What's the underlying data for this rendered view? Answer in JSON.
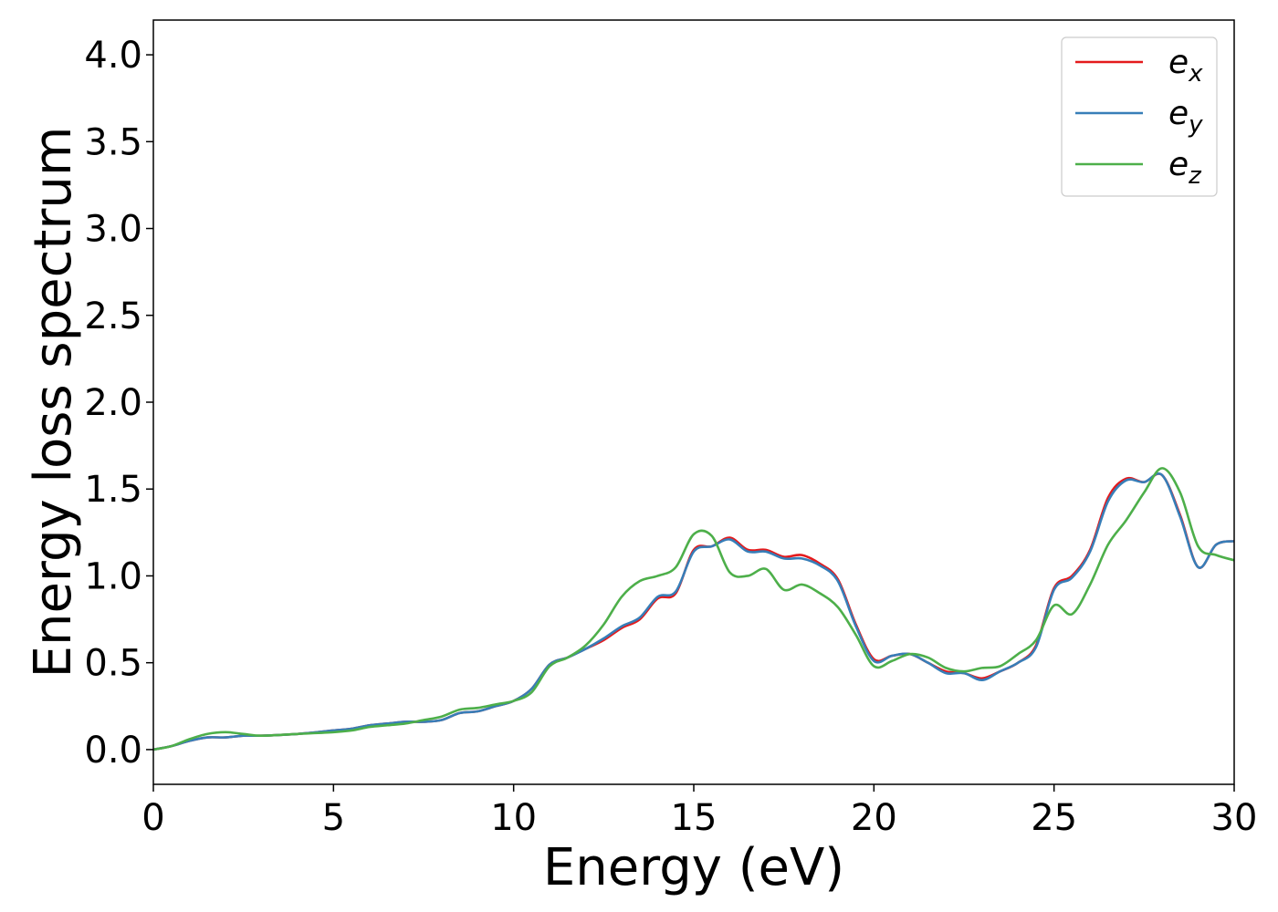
{
  "chart_data": {
    "type": "line",
    "xlabel": "Energy (eV)",
    "ylabel": "Energy loss spectrum",
    "xlim": [
      0,
      30
    ],
    "ylim": [
      -0.2,
      4.2
    ],
    "xticks": [
      0,
      5,
      10,
      15,
      20,
      25,
      30
    ],
    "xtick_labels": [
      "0",
      "5",
      "10",
      "15",
      "20",
      "25",
      "30"
    ],
    "yticks": [
      0.0,
      0.5,
      1.0,
      1.5,
      2.0,
      2.5,
      3.0,
      3.5,
      4.0
    ],
    "ytick_labels": [
      "0.0",
      "0.5",
      "1.0",
      "1.5",
      "2.0",
      "2.5",
      "3.0",
      "3.5",
      "4.0"
    ],
    "grid": false,
    "legend_position": "top-right",
    "series": [
      {
        "name": "e",
        "subscript": "x",
        "color": "#e41a1c",
        "x": [
          0,
          0.5,
          1,
          1.5,
          2,
          2.5,
          3,
          4,
          5,
          5.5,
          6,
          6.5,
          7,
          7.5,
          8,
          8.5,
          9,
          9.5,
          10,
          10.5,
          11,
          11.5,
          12,
          12.5,
          13,
          13.5,
          14,
          14.5,
          15,
          15.5,
          16,
          16.5,
          17,
          17.5,
          18,
          18.5,
          19,
          19.5,
          20,
          20.5,
          21,
          21.5,
          22,
          22.5,
          23,
          23.5,
          24,
          24.5,
          25,
          25.5,
          26,
          26.5,
          27,
          27.5,
          28,
          28.5,
          29,
          29.5,
          30
        ],
        "y": [
          0.0,
          0.02,
          0.05,
          0.07,
          0.07,
          0.08,
          0.08,
          0.09,
          0.11,
          0.12,
          0.14,
          0.15,
          0.16,
          0.16,
          0.17,
          0.21,
          0.22,
          0.25,
          0.28,
          0.35,
          0.49,
          0.53,
          0.58,
          0.63,
          0.7,
          0.75,
          0.87,
          0.9,
          1.15,
          1.17,
          1.22,
          1.15,
          1.15,
          1.11,
          1.12,
          1.07,
          0.98,
          0.72,
          0.52,
          0.54,
          0.55,
          0.5,
          0.45,
          0.44,
          0.41,
          0.45,
          0.5,
          0.6,
          0.93,
          1.0,
          1.15,
          1.45,
          1.56,
          1.54,
          1.58,
          1.35,
          1.05,
          1.18,
          1.2
        ]
      },
      {
        "name": "e",
        "subscript": "y",
        "color": "#377eb8",
        "x": [
          0,
          0.5,
          1,
          1.5,
          2,
          2.5,
          3,
          4,
          5,
          5.5,
          6,
          6.5,
          7,
          7.5,
          8,
          8.5,
          9,
          9.5,
          10,
          10.5,
          11,
          11.5,
          12,
          12.5,
          13,
          13.5,
          14,
          14.5,
          15,
          15.5,
          16,
          16.5,
          17,
          17.5,
          18,
          18.5,
          19,
          19.5,
          20,
          20.5,
          21,
          21.5,
          22,
          22.5,
          23,
          23.5,
          24,
          24.5,
          25,
          25.5,
          26,
          26.5,
          27,
          27.5,
          28,
          28.5,
          29,
          29.5,
          30
        ],
        "y": [
          0.0,
          0.02,
          0.05,
          0.07,
          0.07,
          0.08,
          0.08,
          0.09,
          0.11,
          0.12,
          0.14,
          0.15,
          0.16,
          0.16,
          0.17,
          0.21,
          0.22,
          0.25,
          0.28,
          0.35,
          0.49,
          0.53,
          0.58,
          0.64,
          0.71,
          0.76,
          0.88,
          0.91,
          1.14,
          1.17,
          1.21,
          1.14,
          1.14,
          1.1,
          1.1,
          1.06,
          0.97,
          0.71,
          0.51,
          0.54,
          0.55,
          0.5,
          0.44,
          0.44,
          0.4,
          0.45,
          0.5,
          0.59,
          0.92,
          0.99,
          1.14,
          1.43,
          1.55,
          1.54,
          1.58,
          1.34,
          1.05,
          1.18,
          1.2
        ]
      },
      {
        "name": "e",
        "subscript": "z",
        "color": "#4daf4a",
        "x": [
          0,
          0.5,
          1,
          1.5,
          2,
          2.5,
          3,
          4,
          5,
          5.5,
          6,
          6.5,
          7,
          7.5,
          8,
          8.5,
          9,
          9.5,
          10,
          10.5,
          11,
          11.5,
          12,
          12.5,
          13,
          13.5,
          14,
          14.5,
          15,
          15.5,
          16,
          16.5,
          17,
          17.5,
          18,
          18.5,
          19,
          19.5,
          20,
          20.5,
          21,
          21.5,
          22,
          22.5,
          23,
          23.5,
          24,
          24.5,
          25,
          25.5,
          26,
          26.5,
          27,
          27.5,
          28,
          28.5,
          29,
          29.5,
          30
        ],
        "y": [
          0.0,
          0.02,
          0.06,
          0.09,
          0.1,
          0.09,
          0.08,
          0.09,
          0.1,
          0.11,
          0.13,
          0.14,
          0.15,
          0.17,
          0.19,
          0.23,
          0.24,
          0.26,
          0.28,
          0.33,
          0.48,
          0.53,
          0.6,
          0.72,
          0.88,
          0.97,
          1.0,
          1.05,
          1.24,
          1.23,
          1.02,
          1.0,
          1.04,
          0.92,
          0.95,
          0.9,
          0.82,
          0.66,
          0.48,
          0.51,
          0.55,
          0.53,
          0.47,
          0.45,
          0.47,
          0.48,
          0.55,
          0.63,
          0.83,
          0.78,
          0.95,
          1.18,
          1.32,
          1.48,
          1.62,
          1.48,
          1.17,
          1.12,
          1.09
        ]
      }
    ]
  }
}
